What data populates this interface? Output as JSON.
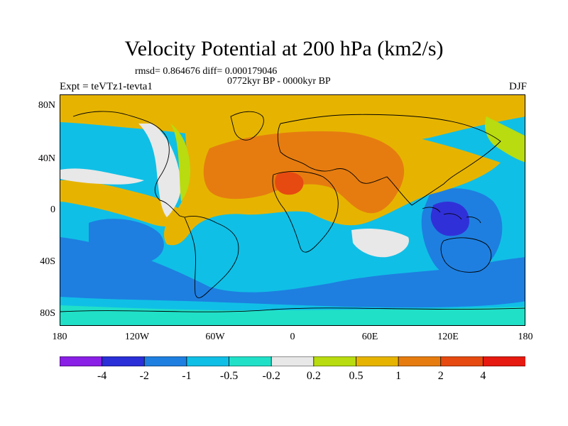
{
  "title": "Velocity Potential at 200 hPa (km2/s)",
  "stats": "rmsd= 0.864676 diff= 0.000179046",
  "period": "0772kyr BP - 0000kyr BP",
  "experiment": "Expt = teVTz1-tevta1",
  "season": "DJF",
  "latitude_labels": [
    "80N",
    "40N",
    "0",
    "40S",
    "80S"
  ],
  "longitude_labels": [
    "180",
    "120W",
    "60W",
    "0",
    "60E",
    "120E",
    "180"
  ],
  "colorbar": {
    "labels": [
      "-4",
      "-2",
      "-1",
      "-0.5",
      "-0.2",
      "0.2",
      "0.5",
      "1",
      "2",
      "4"
    ],
    "colors": [
      "#8a1fe6",
      "#2a2fd8",
      "#1e7fe0",
      "#10bfe6",
      "#20e0c8",
      "#e8e8e8",
      "#b8dc10",
      "#e6b400",
      "#e67c10",
      "#e64a10",
      "#e61a10"
    ]
  },
  "field_colors": {
    "strong_negative": "#3030d8",
    "negative": "#1e7fe0",
    "weak_negative": "#10bfe6",
    "slight_negative": "#20e0c8",
    "neutral": "#e8e8e8",
    "slight_positive": "#b8dc10",
    "positive": "#e6b400",
    "strong_positive": "#e67c10",
    "max_positive": "#e64a10"
  }
}
